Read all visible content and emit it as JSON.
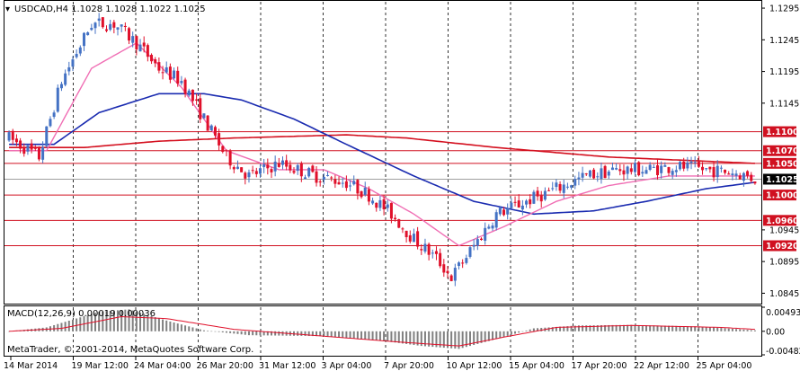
{
  "header": {
    "symbol_line": "USDCAD,H4  1.1028 1.1028 1.1022 1.1025"
  },
  "indicator": {
    "label": "MACD(12,26,9) 0.00019 0.00036"
  },
  "footer": {
    "copyright": "MetaTrader, © 2001-2014, MetaQuotes Software Corp."
  },
  "price_axis": {
    "ticks": [
      "1.1295",
      "1.1245",
      "1.1195",
      "1.1145",
      "1.0945",
      "1.0895",
      "1.0845"
    ],
    "levels": [
      {
        "label": "1.1100",
        "value": 1.11,
        "kind": "resistance"
      },
      {
        "label": "1.1070",
        "value": 1.107,
        "kind": "resistance"
      },
      {
        "label": "1.1050",
        "value": 1.105,
        "kind": "resistance"
      },
      {
        "label": "1.1025",
        "value": 1.1025,
        "kind": "current"
      },
      {
        "label": "1.1000",
        "value": 1.1,
        "kind": "support"
      },
      {
        "label": "1.0960",
        "value": 1.096,
        "kind": "support"
      },
      {
        "label": "1.0920",
        "value": 1.092,
        "kind": "support"
      }
    ]
  },
  "macd_axis": {
    "ticks": [
      "0.00493",
      "0.00",
      "-0.00482"
    ]
  },
  "time_axis": {
    "labels": [
      "14 Mar 2014",
      "19 Mar 12:00",
      "24 Mar 04:00",
      "26 Mar 20:00",
      "31 Mar 12:00",
      "3 Apr 04:00",
      "7 Apr 20:00",
      "10 Apr 12:00",
      "15 Apr 04:00",
      "17 Apr 20:00",
      "22 Apr 12:00",
      "25 Apr 04:00"
    ]
  },
  "colors": {
    "bull": "#4472c4",
    "bear": "#e0102a",
    "ma_fast": "#f06eb4",
    "ma_mid": "#1a2bb0",
    "ma_slow": "#d4101f",
    "level_line": "#d01020",
    "grid": "#000000",
    "histogram": "#808080",
    "signal": "#e0102a",
    "current_bg": "#000000"
  },
  "chart_data": {
    "type": "candlestick",
    "symbol": "USDCAD",
    "timeframe": "H4",
    "ohlc_last": {
      "open": 1.1028,
      "high": 1.1028,
      "low": 1.1022,
      "close": 1.1025
    },
    "ylim": [
      1.083,
      1.1305
    ],
    "anchors": [
      {
        "t": 0,
        "p": 1.109
      },
      {
        "t": 8,
        "p": 1.106
      },
      {
        "t": 14,
        "p": 1.118
      },
      {
        "t": 22,
        "p": 1.127
      },
      {
        "t": 28,
        "p": 1.127
      },
      {
        "t": 34,
        "p": 1.124
      },
      {
        "t": 40,
        "p": 1.12
      },
      {
        "t": 46,
        "p": 1.118
      },
      {
        "t": 52,
        "p": 1.112
      },
      {
        "t": 58,
        "p": 1.106
      },
      {
        "t": 64,
        "p": 1.103
      },
      {
        "t": 72,
        "p": 1.105
      },
      {
        "t": 82,
        "p": 1.103
      },
      {
        "t": 90,
        "p": 1.102
      },
      {
        "t": 96,
        "p": 1.1
      },
      {
        "t": 102,
        "p": 1.097
      },
      {
        "t": 108,
        "p": 1.093
      },
      {
        "t": 114,
        "p": 1.09
      },
      {
        "t": 118,
        "p": 1.087
      },
      {
        "t": 124,
        "p": 1.092
      },
      {
        "t": 130,
        "p": 1.097
      },
      {
        "t": 138,
        "p": 1.099
      },
      {
        "t": 146,
        "p": 1.101
      },
      {
        "t": 154,
        "p": 1.103
      },
      {
        "t": 162,
        "p": 1.104
      },
      {
        "t": 170,
        "p": 1.104
      },
      {
        "t": 178,
        "p": 1.1045
      },
      {
        "t": 186,
        "p": 1.104
      },
      {
        "t": 194,
        "p": 1.1035
      },
      {
        "t": 199,
        "p": 1.1025
      }
    ],
    "bars": 200,
    "ma_fast_anchors": [
      {
        "t": 0,
        "p": 1.107
      },
      {
        "t": 10,
        "p": 1.107
      },
      {
        "t": 22,
        "p": 1.12
      },
      {
        "t": 34,
        "p": 1.124
      },
      {
        "t": 46,
        "p": 1.117
      },
      {
        "t": 58,
        "p": 1.107
      },
      {
        "t": 72,
        "p": 1.104
      },
      {
        "t": 84,
        "p": 1.104
      },
      {
        "t": 96,
        "p": 1.101
      },
      {
        "t": 108,
        "p": 1.097
      },
      {
        "t": 120,
        "p": 1.092
      },
      {
        "t": 132,
        "p": 1.095
      },
      {
        "t": 146,
        "p": 1.099
      },
      {
        "t": 160,
        "p": 1.1015
      },
      {
        "t": 176,
        "p": 1.103
      },
      {
        "t": 199,
        "p": 1.103
      }
    ],
    "ma_mid_anchors": [
      {
        "t": 0,
        "p": 1.108
      },
      {
        "t": 12,
        "p": 1.108
      },
      {
        "t": 24,
        "p": 1.113
      },
      {
        "t": 40,
        "p": 1.116
      },
      {
        "t": 52,
        "p": 1.116
      },
      {
        "t": 62,
        "p": 1.115
      },
      {
        "t": 76,
        "p": 1.112
      },
      {
        "t": 90,
        "p": 1.108
      },
      {
        "t": 108,
        "p": 1.103
      },
      {
        "t": 124,
        "p": 1.099
      },
      {
        "t": 140,
        "p": 1.097
      },
      {
        "t": 156,
        "p": 1.0975
      },
      {
        "t": 170,
        "p": 1.099
      },
      {
        "t": 186,
        "p": 1.101
      },
      {
        "t": 199,
        "p": 1.102
      }
    ],
    "ma_slow_anchors": [
      {
        "t": 0,
        "p": 1.1075
      },
      {
        "t": 20,
        "p": 1.1075
      },
      {
        "t": 40,
        "p": 1.1085
      },
      {
        "t": 60,
        "p": 1.109
      },
      {
        "t": 90,
        "p": 1.1095
      },
      {
        "t": 106,
        "p": 1.109
      },
      {
        "t": 130,
        "p": 1.1075
      },
      {
        "t": 160,
        "p": 1.106
      },
      {
        "t": 199,
        "p": 1.105
      }
    ],
    "macd_ylim": [
      -0.00482,
      0.00493
    ],
    "macd_hist_anchors": [
      {
        "t": 0,
        "v": 0.0
      },
      {
        "t": 10,
        "v": 0.0008
      },
      {
        "t": 24,
        "v": 0.004
      },
      {
        "t": 32,
        "v": 0.0045
      },
      {
        "t": 42,
        "v": 0.0022
      },
      {
        "t": 52,
        "v": 0.0002
      },
      {
        "t": 64,
        "v": -0.0008
      },
      {
        "t": 84,
        "v": -0.001
      },
      {
        "t": 98,
        "v": -0.0018
      },
      {
        "t": 110,
        "v": -0.003
      },
      {
        "t": 120,
        "v": -0.0036
      },
      {
        "t": 130,
        "v": -0.0016
      },
      {
        "t": 140,
        "v": 0.0006
      },
      {
        "t": 152,
        "v": 0.0012
      },
      {
        "t": 166,
        "v": 0.0013
      },
      {
        "t": 184,
        "v": 0.001
      },
      {
        "t": 199,
        "v": 0.0002
      }
    ],
    "macd_signal_anchors": [
      {
        "t": 0,
        "v": 0.0
      },
      {
        "t": 14,
        "v": 0.0006
      },
      {
        "t": 30,
        "v": 0.003
      },
      {
        "t": 42,
        "v": 0.0026
      },
      {
        "t": 60,
        "v": 0.0004
      },
      {
        "t": 84,
        "v": -0.001
      },
      {
        "t": 104,
        "v": -0.0022
      },
      {
        "t": 120,
        "v": -0.003
      },
      {
        "t": 132,
        "v": -0.0012
      },
      {
        "t": 146,
        "v": 0.0008
      },
      {
        "t": 166,
        "v": 0.0012
      },
      {
        "t": 190,
        "v": 0.0008
      },
      {
        "t": 199,
        "v": 0.0004
      }
    ]
  }
}
